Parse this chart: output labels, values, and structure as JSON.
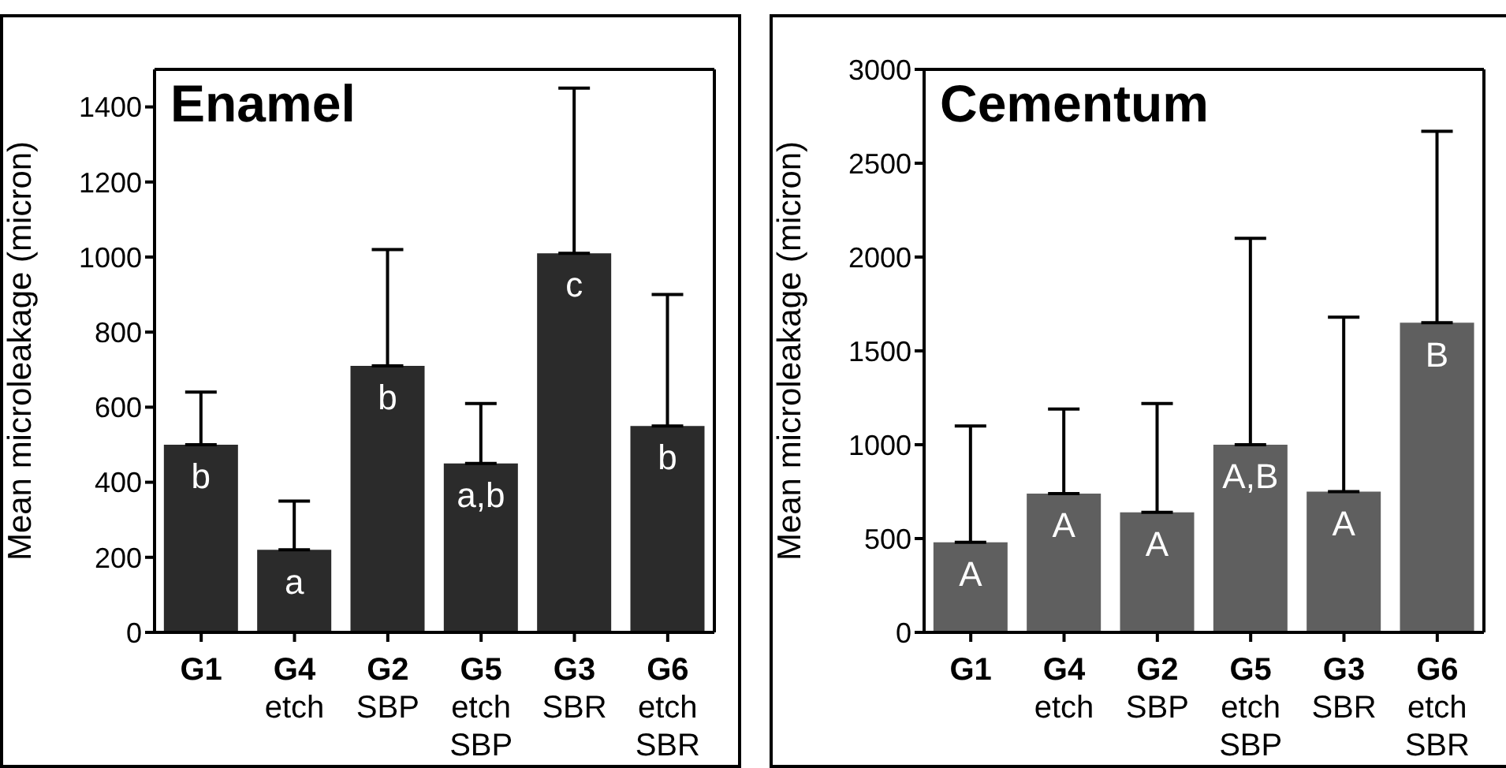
{
  "chart_data": [
    {
      "type": "bar",
      "title": "Enamel",
      "ylabel": "Mean microleakage (micron)",
      "categories": [
        "G1",
        "G4\netch",
        "G2\nSBP",
        "G5\netch\nSBP",
        "G3\nSBR",
        "G6\netch\nSBR"
      ],
      "values": [
        500,
        220,
        710,
        450,
        1010,
        550
      ],
      "errors": [
        [
          500,
          640
        ],
        [
          220,
          350
        ],
        [
          710,
          1020
        ],
        [
          450,
          610
        ],
        [
          1010,
          1450
        ],
        [
          550,
          900
        ]
      ],
      "value_labels": [
        "b",
        "a",
        "b",
        "a,b",
        "c",
        "b"
      ],
      "color": "#2b2b2b",
      "ylim": [
        0,
        1500
      ],
      "yticks": [
        0,
        200,
        400,
        600,
        800,
        1000,
        1200,
        1400
      ]
    },
    {
      "type": "bar",
      "title": "Cementum",
      "ylabel": "Mean microleakage (micron)",
      "categories": [
        "G1",
        "G4\netch",
        "G2\nSBP",
        "G5\netch\nSBP",
        "G3\nSBR",
        "G6\netch\nSBR"
      ],
      "values": [
        480,
        740,
        640,
        1000,
        750,
        1650
      ],
      "errors": [
        [
          480,
          1100
        ],
        [
          740,
          1190
        ],
        [
          640,
          1220
        ],
        [
          1000,
          2100
        ],
        [
          750,
          1680
        ],
        [
          1650,
          2670
        ]
      ],
      "value_labels": [
        "A",
        "A",
        "A",
        "A,B",
        "A",
        "B"
      ],
      "color": "#5f5f5f",
      "ylim": [
        0,
        3000
      ],
      "yticks": [
        0,
        500,
        1000,
        1500,
        2000,
        2500,
        3000
      ]
    }
  ]
}
